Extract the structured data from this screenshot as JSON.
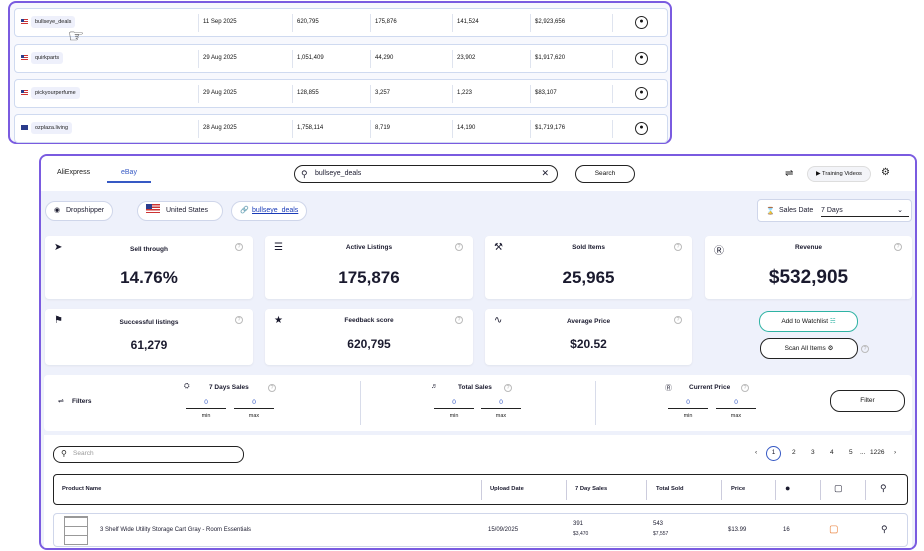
{
  "sellers": [
    {
      "store": "bullseye_deals",
      "date": "11 Sep 2025",
      "feedback": "620,795",
      "listings": "175,876",
      "sold": "141,524",
      "revenue": "$2,923,656"
    },
    {
      "store": "quirkparts",
      "date": "29 Aug 2025",
      "feedback": "1,051,409",
      "listings": "44,290",
      "sold": "23,902",
      "revenue": "$1,917,620"
    },
    {
      "store": "pickyourperfume",
      "date": "29 Aug 2025",
      "feedback": "128,855",
      "listings": "3,257",
      "sold": "1,223",
      "revenue": "$83,107"
    },
    {
      "store": "ozplaza.living",
      "date": "28 Aug 2025",
      "feedback": "1,758,114",
      "listings": "8,719",
      "sold": "14,190",
      "revenue": "$1,719,176"
    }
  ],
  "tabs": [
    "AliExpress",
    "eBay"
  ],
  "search": {
    "value": "bullseye_deals",
    "button": "Search"
  },
  "training_videos": "Training Videos",
  "pills": {
    "role": "Dropshipper",
    "country": "United States",
    "store_link": "bullseye_deals"
  },
  "sales_date": {
    "label": "Sales Date",
    "value": "7 Days"
  },
  "stats": {
    "sell_through": {
      "label": "Sell through",
      "value": "14.76%"
    },
    "active_listings": {
      "label": "Active Listings",
      "value": "175,876"
    },
    "sold_items": {
      "label": "Sold Items",
      "value": "25,965"
    },
    "revenue": {
      "label": "Revenue",
      "value": "$532,905"
    },
    "successful_listings": {
      "label": "Successful listings",
      "value": "61,279"
    },
    "feedback_score": {
      "label": "Feedback score",
      "value": "620,795"
    },
    "average_price": {
      "label": "Average Price",
      "value": "$20.52"
    }
  },
  "actions": {
    "watchlist": "Add to Watchlist",
    "scan": "Scan All Items"
  },
  "filters": {
    "title": "Filters",
    "seven_day_sales": "7 Days Sales",
    "total_sales": "Total Sales",
    "current_price": "Current Price",
    "min_value": "0",
    "max_value": "0",
    "min_label": "min",
    "max_label": "max",
    "button": "Filter"
  },
  "table": {
    "search_placeholder": "Search",
    "pagination": {
      "current": "1",
      "pages": [
        "2",
        "3",
        "4",
        "5"
      ],
      "ellipsis": "...",
      "last": "1226"
    },
    "headers": {
      "product": "Product Name",
      "upload": "Upload Date",
      "seven_day": "7 Day Sales",
      "total": "Total Sold",
      "price": "Price"
    },
    "rows": [
      {
        "name": "3 Shelf Wide Utility Storage Cart Gray - Room Essentials",
        "upload": "15/09/2025",
        "seven_day_qty": "391",
        "seven_day_rev": "$3,470",
        "total_qty": "543",
        "total_rev": "$7,557",
        "price": "$13.99",
        "competitors": "16"
      }
    ]
  },
  "colors": {
    "accent": "#7a5be0",
    "link": "#3659c4",
    "watchlist_border": "#2fb3a3"
  }
}
